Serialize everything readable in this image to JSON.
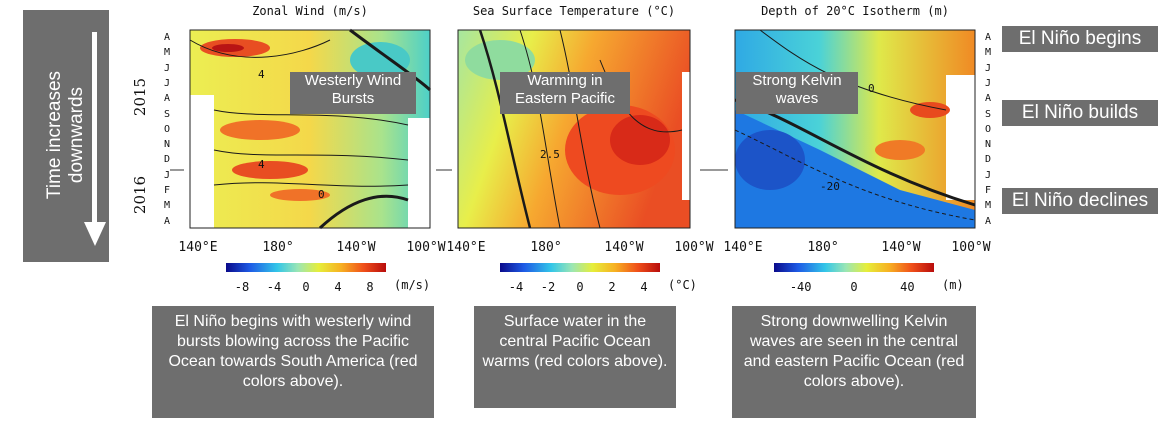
{
  "left_label": "Time increases downwards",
  "tags": {
    "begins": "El Niño begins",
    "builds": "El Niño builds",
    "declines": "El Niño declines"
  },
  "months": [
    "A",
    "M",
    "J",
    "J",
    "A",
    "S",
    "O",
    "N",
    "D",
    "J",
    "F",
    "M",
    "A"
  ],
  "years": [
    "2015",
    "2016"
  ],
  "x_ticks": [
    "140°E",
    "180°",
    "140°W",
    "100°W"
  ],
  "chart_data": [
    {
      "type": "heatmap",
      "title": "Zonal Wind (m/s)",
      "x_ticks": [
        "140°E",
        "180°",
        "140°W",
        "100°W"
      ],
      "y_ticks": [
        "A",
        "M",
        "J",
        "J",
        "A",
        "S",
        "O",
        "N",
        "D",
        "J",
        "F",
        "M",
        "A"
      ],
      "contour_labels": [
        "4",
        "4",
        "0"
      ],
      "colorbar": {
        "ticks": [
          -8,
          -4,
          0,
          4,
          8
        ],
        "range": [
          -10,
          10
        ],
        "unit": "(m/s)"
      },
      "annotation": "Westerly Wind Bursts"
    },
    {
      "type": "heatmap",
      "title": "Sea Surface Temperature (°C)",
      "x_ticks": [
        "140°E",
        "180°",
        "140°W",
        "100°W"
      ],
      "y_ticks": [
        "A",
        "M",
        "J",
        "J",
        "A",
        "S",
        "O",
        "N",
        "D",
        "J",
        "F",
        "M",
        "A"
      ],
      "contour_labels": [
        "2.5"
      ],
      "colorbar": {
        "ticks": [
          -4,
          -2,
          0,
          2,
          4
        ],
        "range": [
          -5,
          5
        ],
        "unit": "(°C)"
      },
      "annotation": "Warming in Eastern Pacific"
    },
    {
      "type": "heatmap",
      "title": "Depth of 20°C Isotherm (m)",
      "x_ticks": [
        "140°E",
        "180°",
        "140°W",
        "100°W"
      ],
      "y_ticks": [
        "A",
        "M",
        "J",
        "J",
        "A",
        "S",
        "O",
        "N",
        "D",
        "J",
        "F",
        "M",
        "A"
      ],
      "contour_labels": [
        "0",
        "-20"
      ],
      "colorbar": {
        "ticks": [
          -40,
          0,
          40
        ],
        "range": [
          -60,
          60
        ],
        "unit": "(m)"
      },
      "annotation": "Strong Kelvin waves"
    }
  ],
  "captions": [
    "El Niño begins with westerly wind bursts blowing across the Pacific Ocean towards South America (red colors above).",
    "Surface water in the central Pacific Ocean warms (red colors above).",
    "Strong downwelling Kelvin waves are seen in the central and eastern Pacific Ocean (red colors above)."
  ],
  "colors": {
    "box": "#6e6e6e",
    "text": "#ffffff"
  }
}
